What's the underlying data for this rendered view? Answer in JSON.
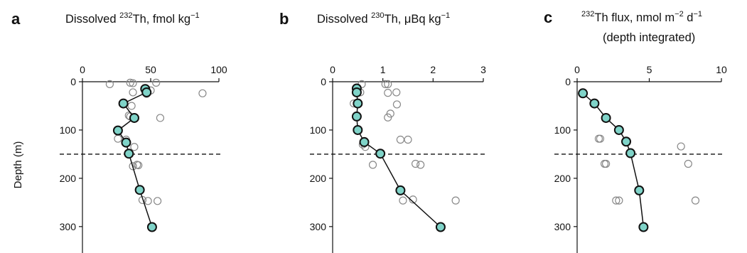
{
  "figure": {
    "ylabel": "Depth (m)",
    "colors": {
      "mean_fill": "#7fd3c8",
      "marker_stroke": "#111111",
      "scatter_stroke": "#888888",
      "line": "#111111"
    }
  },
  "chart_data": [
    {
      "type": "scatter",
      "panel": "a",
      "title_pre": "Dissolved ",
      "title_sup": "232",
      "title_post": "Th, fmol kg",
      "title_unit_sup": "−1",
      "title_line2": "",
      "x_ticks": [
        "0",
        "50",
        "100"
      ],
      "y_ticks": [
        "0",
        "100",
        "200",
        "300"
      ],
      "xlim": [
        0,
        100
      ],
      "ylim": [
        0,
        340
      ],
      "dashed_depth": 150,
      "grid": false,
      "series": [
        {
          "role": "samples",
          "points": [
            [
              20,
              5
            ],
            [
              35,
              2
            ],
            [
              37,
              3
            ],
            [
              54,
              2
            ],
            [
              88,
              24
            ],
            [
              37,
              22
            ],
            [
              47,
              25
            ],
            [
              50,
              18
            ],
            [
              36,
              50
            ],
            [
              57,
              75
            ],
            [
              34,
              70
            ],
            [
              35,
              72
            ],
            [
              26,
              103
            ],
            [
              32,
              120
            ],
            [
              26,
              118
            ],
            [
              32,
              128
            ],
            [
              38,
              135
            ],
            [
              37,
              175
            ],
            [
              40,
              172
            ],
            [
              41,
              173
            ],
            [
              44,
              245
            ],
            [
              48,
              247
            ],
            [
              55,
              247
            ]
          ]
        },
        {
          "role": "mean",
          "points": [
            [
              46,
              15
            ],
            [
              47,
              22
            ],
            [
              30,
              45
            ],
            [
              38,
              75
            ],
            [
              26,
              101
            ],
            [
              32,
              126
            ],
            [
              34,
              149
            ],
            [
              42,
              224
            ],
            [
              51,
              301
            ]
          ]
        }
      ]
    },
    {
      "type": "scatter",
      "panel": "b",
      "title_pre": "Dissolved ",
      "title_sup": "230",
      "title_post": "Th, μBq kg",
      "title_unit_sup": "−1",
      "title_line2": "",
      "x_ticks": [
        "0",
        "1",
        "2",
        "3"
      ],
      "y_ticks": [
        "0",
        "100",
        "200",
        "300"
      ],
      "xlim": [
        0,
        3
      ],
      "ylim": [
        0,
        340
      ],
      "dashed_depth": 150,
      "grid": false,
      "series": [
        {
          "role": "samples",
          "points": [
            [
              0.58,
              5
            ],
            [
              1.05,
              5
            ],
            [
              1.1,
              5
            ],
            [
              1.27,
              22
            ],
            [
              1.28,
              47
            ],
            [
              1.1,
              23
            ],
            [
              1.15,
              66
            ],
            [
              1.1,
              74
            ],
            [
              0.42,
              45
            ],
            [
              0.48,
              72
            ],
            [
              0.55,
              22
            ],
            [
              1.35,
              120
            ],
            [
              1.5,
              120
            ],
            [
              0.6,
              130
            ],
            [
              0.65,
              135
            ],
            [
              0.8,
              172
            ],
            [
              1.65,
              170
            ],
            [
              1.75,
              172
            ],
            [
              1.4,
              246
            ],
            [
              1.6,
              244
            ],
            [
              2.45,
              246
            ]
          ]
        },
        {
          "role": "mean",
          "points": [
            [
              0.48,
              14
            ],
            [
              0.48,
              22
            ],
            [
              0.5,
              45
            ],
            [
              0.48,
              72
            ],
            [
              0.5,
              100
            ],
            [
              0.63,
              125
            ],
            [
              0.95,
              149
            ],
            [
              1.35,
              225
            ],
            [
              2.15,
              301
            ]
          ]
        }
      ]
    },
    {
      "type": "scatter",
      "panel": "c",
      "title_pre": "",
      "title_sup": "232",
      "title_post": "Th flux, nmol m",
      "title_unit_sup": "−2",
      "title_post2": " d",
      "title_unit_sup2": "−1",
      "title_line2": "(depth integrated)",
      "x_ticks": [
        "0",
        "5",
        "10"
      ],
      "y_ticks": [
        "0",
        "100",
        "200",
        "300"
      ],
      "xlim": [
        0,
        10
      ],
      "ylim": [
        0,
        340
      ],
      "dashed_depth": 150,
      "grid": false,
      "series": [
        {
          "role": "samples",
          "points": [
            [
              1.5,
              118
            ],
            [
              1.6,
              118
            ],
            [
              1.9,
              170
            ],
            [
              2.0,
              170
            ],
            [
              7.2,
              134
            ],
            [
              7.7,
              170
            ],
            [
              2.7,
              246
            ],
            [
              2.9,
              246
            ],
            [
              8.2,
              246
            ]
          ]
        },
        {
          "role": "mean",
          "points": [
            [
              0.4,
              24
            ],
            [
              1.2,
              45
            ],
            [
              2.0,
              75
            ],
            [
              2.9,
              100
            ],
            [
              3.4,
              124
            ],
            [
              3.7,
              148
            ],
            [
              4.3,
              225
            ],
            [
              4.6,
              301
            ]
          ]
        }
      ]
    }
  ]
}
